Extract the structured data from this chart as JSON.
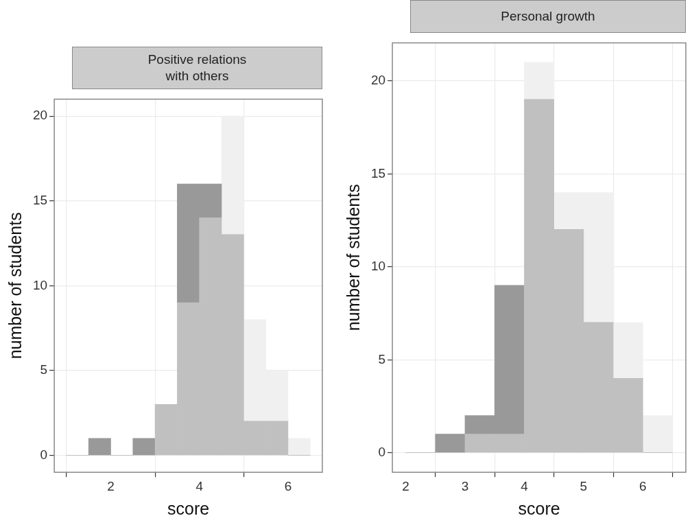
{
  "chart_data": [
    {
      "type": "bar",
      "title": "Positive relations\nwith others",
      "xlabel": "score",
      "ylabel": "number of students",
      "x": [
        1.25,
        1.75,
        2.25,
        2.75,
        3.25,
        3.75,
        4.25,
        4.75,
        5.25,
        5.75,
        6.25
      ],
      "stacked": true,
      "series": [
        {
          "color": "#c0c0c0",
          "values": [
            0,
            0,
            0,
            0,
            3,
            9,
            14,
            13,
            2,
            2,
            0
          ]
        },
        {
          "color": "#999999",
          "values": [
            0,
            1,
            0,
            1,
            0,
            7,
            2,
            0,
            0,
            0,
            0
          ]
        },
        {
          "color": "#f0f0f0",
          "values": [
            0,
            0,
            0,
            0,
            0,
            0,
            0,
            7,
            6,
            3,
            1
          ]
        }
      ],
      "xlim": [
        0.725,
        6.775
      ],
      "xticks": [
        2,
        4,
        6
      ],
      "ylim": [
        -1,
        21
      ],
      "yticks": [
        0,
        5,
        10,
        15,
        20
      ],
      "grid": true
    },
    {
      "type": "bar",
      "title": "Personal growth",
      "xlabel": "score",
      "ylabel": "number of students",
      "x": [
        2.25,
        2.75,
        3.25,
        3.75,
        4.25,
        4.75,
        5.25,
        5.75,
        6.25
      ],
      "stacked": true,
      "series": [
        {
          "color": "#c0c0c0",
          "values": [
            0,
            0,
            1,
            1,
            19,
            12,
            7,
            4,
            0
          ]
        },
        {
          "color": "#999999",
          "values": [
            0,
            1,
            1,
            8,
            0,
            0,
            0,
            0,
            0
          ]
        },
        {
          "color": "#f0f0f0",
          "values": [
            0,
            0,
            0,
            0,
            2,
            2,
            7,
            3,
            2
          ]
        }
      ],
      "xlim": [
        1.775,
        6.725
      ],
      "xticks": [
        2,
        3,
        4,
        5,
        6
      ],
      "ylim": [
        -1.05,
        22.05
      ],
      "yticks": [
        0,
        5,
        10,
        15,
        20
      ],
      "grid": true
    }
  ]
}
